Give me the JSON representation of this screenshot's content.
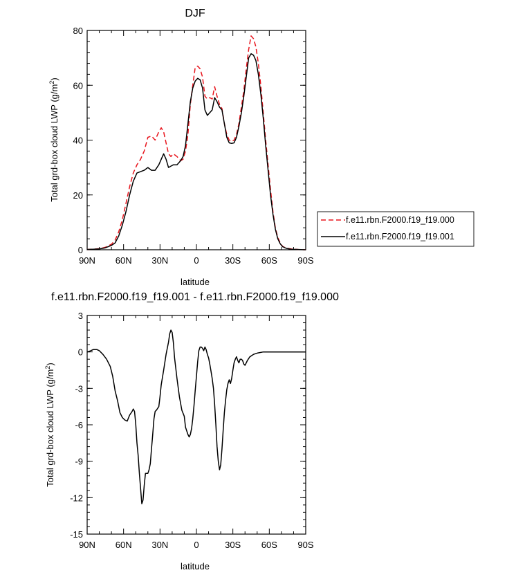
{
  "chart_data": [
    {
      "type": "line",
      "title": "DJF",
      "xlabel": "latitude",
      "ylabel": "Total grd-box cloud LWP (g/m",
      "ylabel_sup": "2",
      "ylabel_tail": ")",
      "xlim": [
        90,
        -90
      ],
      "ylim": [
        0,
        80
      ],
      "x_ticks": [
        90,
        60,
        30,
        0,
        -30,
        -60,
        -90
      ],
      "x_tick_labels": [
        "90N",
        "60N",
        "30N",
        "0",
        "30S",
        "60S",
        "90S"
      ],
      "y_ticks": [
        0,
        20,
        40,
        60,
        80
      ],
      "y_tick_labels": [
        "0",
        "20",
        "40",
        "60",
        "80"
      ],
      "grid": false,
      "legend_position": "right",
      "series": [
        {
          "name": "f.e11.rbn.F2000.f19_f19.000",
          "color": "#e8141c",
          "dash": "dashed",
          "points": [
            [
              90,
              0.1
            ],
            [
              85,
              0.2
            ],
            [
              80,
              0.4
            ],
            [
              75,
              0.9
            ],
            [
              70,
              2.0
            ],
            [
              67,
              3.5
            ],
            [
              64,
              6.5
            ],
            [
              61,
              11
            ],
            [
              58,
              17
            ],
            [
              55,
              23
            ],
            [
              52,
              28
            ],
            [
              49,
              31
            ],
            [
              46,
              33
            ],
            [
              43,
              36
            ],
            [
              40,
              41
            ],
            [
              37,
              41.5
            ],
            [
              34,
              40
            ],
            [
              31,
              43
            ],
            [
              29,
              44.5
            ],
            [
              27,
              43
            ],
            [
              25,
              39
            ],
            [
              23,
              35
            ],
            [
              21,
              34
            ],
            [
              19,
              35
            ],
            [
              16,
              34
            ],
            [
              13,
              32.5
            ],
            [
              11,
              33
            ],
            [
              9,
              36
            ],
            [
              7,
              42
            ],
            [
              5,
              53
            ],
            [
              3,
              60
            ],
            [
              1,
              66.5
            ],
            [
              -1,
              67
            ],
            [
              -3,
              66
            ],
            [
              -5,
              63
            ],
            [
              -7,
              56
            ],
            [
              -9,
              55
            ],
            [
              -11,
              55.5
            ],
            [
              -13,
              55
            ],
            [
              -15,
              59.5
            ],
            [
              -17,
              56
            ],
            [
              -19,
              53
            ],
            [
              -21,
              51.5
            ],
            [
              -23,
              46
            ],
            [
              -25,
              42
            ],
            [
              -27,
              40
            ],
            [
              -29,
              39.5
            ],
            [
              -31,
              40
            ],
            [
              -33,
              42
            ],
            [
              -35,
              46
            ],
            [
              -37,
              52
            ],
            [
              -39,
              58
            ],
            [
              -41,
              66
            ],
            [
              -43,
              73
            ],
            [
              -45,
              78
            ],
            [
              -47,
              77
            ],
            [
              -49,
              74
            ],
            [
              -51,
              68
            ],
            [
              -53,
              60
            ],
            [
              -55,
              50
            ],
            [
              -57,
              40
            ],
            [
              -59,
              31
            ],
            [
              -61,
              22
            ],
            [
              -63,
              14
            ],
            [
              -65,
              8
            ],
            [
              -67,
              4.5
            ],
            [
              -69,
              2.5
            ],
            [
              -71,
              1.2
            ],
            [
              -74,
              0.6
            ],
            [
              -78,
              0.3
            ],
            [
              -84,
              0.1
            ],
            [
              -90,
              0.0
            ]
          ]
        },
        {
          "name": "f.e11.rbn.F2000.f19_f19.001",
          "color": "#000000",
          "dash": "solid",
          "points": [
            [
              90,
              0.1
            ],
            [
              85,
              0.2
            ],
            [
              80,
              0.3
            ],
            [
              75,
              0.7
            ],
            [
              70,
              1.6
            ],
            [
              67,
              2.5
            ],
            [
              64,
              5
            ],
            [
              61,
              9
            ],
            [
              58,
              14
            ],
            [
              55,
              20
            ],
            [
              52,
              25
            ],
            [
              49,
              28
            ],
            [
              46,
              28.5
            ],
            [
              43,
              29
            ],
            [
              40,
              30
            ],
            [
              37,
              29
            ],
            [
              34,
              29
            ],
            [
              31,
              31
            ],
            [
              29,
              33
            ],
            [
              27,
              35
            ],
            [
              25,
              33
            ],
            [
              23,
              30
            ],
            [
              21,
              30.5
            ],
            [
              19,
              31
            ],
            [
              16,
              31
            ],
            [
              13,
              32.5
            ],
            [
              11,
              34
            ],
            [
              9,
              38
            ],
            [
              7,
              46
            ],
            [
              5,
              54
            ],
            [
              3,
              59
            ],
            [
              1,
              61.5
            ],
            [
              -1,
              62.5
            ],
            [
              -3,
              62
            ],
            [
              -5,
              59
            ],
            [
              -7,
              51
            ],
            [
              -9,
              49
            ],
            [
              -11,
              50
            ],
            [
              -13,
              51
            ],
            [
              -15,
              55.5
            ],
            [
              -17,
              54
            ],
            [
              -19,
              52
            ],
            [
              -21,
              51
            ],
            [
              -23,
              46
            ],
            [
              -25,
              41
            ],
            [
              -27,
              39
            ],
            [
              -29,
              38.8
            ],
            [
              -31,
              39
            ],
            [
              -33,
              41
            ],
            [
              -35,
              45
            ],
            [
              -37,
              50
            ],
            [
              -39,
              56
            ],
            [
              -41,
              63
            ],
            [
              -43,
              70
            ],
            [
              -45,
              71.5
            ],
            [
              -47,
              71
            ],
            [
              -49,
              69
            ],
            [
              -51,
              64
            ],
            [
              -53,
              57
            ],
            [
              -55,
              48
            ],
            [
              -57,
              38
            ],
            [
              -59,
              29
            ],
            [
              -61,
              20
            ],
            [
              -63,
              13
            ],
            [
              -65,
              7.5
            ],
            [
              -67,
              4
            ],
            [
              -69,
              2.2
            ],
            [
              -71,
              1.1
            ],
            [
              -74,
              0.5
            ],
            [
              -78,
              0.2
            ],
            [
              -84,
              0.1
            ],
            [
              -90,
              0.0
            ]
          ]
        }
      ]
    },
    {
      "type": "line",
      "title": "f.e11.rbn.F2000.f19_f19.001 - f.e11.rbn.F2000.f19_f19.000",
      "xlabel": "latitude",
      "ylabel": "Total grd-box cloud LWP (g/m",
      "ylabel_sup": "2",
      "ylabel_tail": ")",
      "xlim": [
        90,
        -90
      ],
      "ylim": [
        -15,
        3
      ],
      "x_ticks": [
        90,
        60,
        30,
        0,
        -30,
        -60,
        -90
      ],
      "x_tick_labels": [
        "90N",
        "60N",
        "30N",
        "0",
        "30S",
        "60S",
        "90S"
      ],
      "y_ticks": [
        -15,
        -12,
        -9,
        -6,
        -3,
        0,
        3
      ],
      "y_tick_labels": [
        "-15",
        "-12",
        "-9",
        "-6",
        "-3",
        "0",
        "3"
      ],
      "grid": false,
      "series": [
        {
          "color": "#000000",
          "dash": "solid",
          "points": [
            [
              90,
              0.0
            ],
            [
              87,
              0.1
            ],
            [
              85,
              0.2
            ],
            [
              82,
              0.2
            ],
            [
              80,
              0.1
            ],
            [
              77,
              -0.2
            ],
            [
              74,
              -0.6
            ],
            [
              71,
              -1.2
            ],
            [
              69,
              -2.0
            ],
            [
              67,
              -3.2
            ],
            [
              65,
              -4.0
            ],
            [
              63,
              -5.0
            ],
            [
              61,
              -5.4
            ],
            [
              59,
              -5.6
            ],
            [
              57,
              -5.7
            ],
            [
              55,
              -5.2
            ],
            [
              53,
              -4.9
            ],
            [
              52,
              -4.7
            ],
            [
              51,
              -4.9
            ],
            [
              50,
              -5.9
            ],
            [
              49,
              -7.5
            ],
            [
              48,
              -8.5
            ],
            [
              47,
              -10.0
            ],
            [
              46,
              -11.2
            ],
            [
              45,
              -12.5
            ],
            [
              44,
              -12.2
            ],
            [
              43,
              -11.0
            ],
            [
              42,
              -10.0
            ],
            [
              41,
              -10.0
            ],
            [
              40,
              -10.0
            ],
            [
              39,
              -9.7
            ],
            [
              38,
              -9.2
            ],
            [
              37,
              -8.0
            ],
            [
              36,
              -6.8
            ],
            [
              35,
              -5.5
            ],
            [
              34,
              -4.9
            ],
            [
              33,
              -4.8
            ],
            [
              31,
              -4.5
            ],
            [
              30,
              -3.7
            ],
            [
              29,
              -2.7
            ],
            [
              27,
              -1.5
            ],
            [
              25,
              -0.2
            ],
            [
              23,
              0.8
            ],
            [
              22,
              1.5
            ],
            [
              21,
              1.8
            ],
            [
              20,
              1.6
            ],
            [
              19,
              0.8
            ],
            [
              18,
              -0.5
            ],
            [
              16,
              -2.2
            ],
            [
              14,
              -3.7
            ],
            [
              12,
              -4.8
            ],
            [
              10,
              -5.3
            ],
            [
              9,
              -6.2
            ],
            [
              7,
              -6.8
            ],
            [
              6,
              -7.0
            ],
            [
              5,
              -6.8
            ],
            [
              4,
              -6.3
            ],
            [
              3,
              -5.5
            ],
            [
              2,
              -4.4
            ],
            [
              1,
              -3.2
            ],
            [
              0,
              -2.0
            ],
            [
              -1,
              -0.8
            ],
            [
              -2,
              0.1
            ],
            [
              -3,
              0.4
            ],
            [
              -4,
              0.4
            ],
            [
              -5,
              0.3
            ],
            [
              -6,
              0.1
            ],
            [
              -7,
              0.4
            ],
            [
              -8,
              0.2
            ],
            [
              -9,
              -0.2
            ],
            [
              -10,
              -0.5
            ],
            [
              -11,
              -1.0
            ],
            [
              -12,
              -1.6
            ],
            [
              -13,
              -2.2
            ],
            [
              -14,
              -3.0
            ],
            [
              -15,
              -4.3
            ],
            [
              -16,
              -6.0
            ],
            [
              -17,
              -7.8
            ],
            [
              -18,
              -9.0
            ],
            [
              -19,
              -9.7
            ],
            [
              -20,
              -9.3
            ],
            [
              -21,
              -8.0
            ],
            [
              -22,
              -6.5
            ],
            [
              -23,
              -5.0
            ],
            [
              -24,
              -4.0
            ],
            [
              -25,
              -3.1
            ],
            [
              -26,
              -2.6
            ],
            [
              -27,
              -2.3
            ],
            [
              -28,
              -2.6
            ],
            [
              -29,
              -2.2
            ],
            [
              -30,
              -1.5
            ],
            [
              -31,
              -0.9
            ],
            [
              -32,
              -0.6
            ],
            [
              -33,
              -0.4
            ],
            [
              -34,
              -0.7
            ],
            [
              -35,
              -0.9
            ],
            [
              -36,
              -0.6
            ],
            [
              -37,
              -0.6
            ],
            [
              -38,
              -0.7
            ],
            [
              -39,
              -1.0
            ],
            [
              -40,
              -1.1
            ],
            [
              -41,
              -0.9
            ],
            [
              -42,
              -0.7
            ],
            [
              -44,
              -0.4
            ],
            [
              -47,
              -0.2
            ],
            [
              -50,
              -0.1
            ],
            [
              -55,
              0.0
            ],
            [
              -60,
              0.0
            ],
            [
              -65,
              0.0
            ],
            [
              -70,
              0.0
            ],
            [
              -75,
              0.0
            ],
            [
              -80,
              0.0
            ],
            [
              -85,
              0.0
            ],
            [
              -90,
              0.0
            ]
          ]
        }
      ]
    }
  ]
}
